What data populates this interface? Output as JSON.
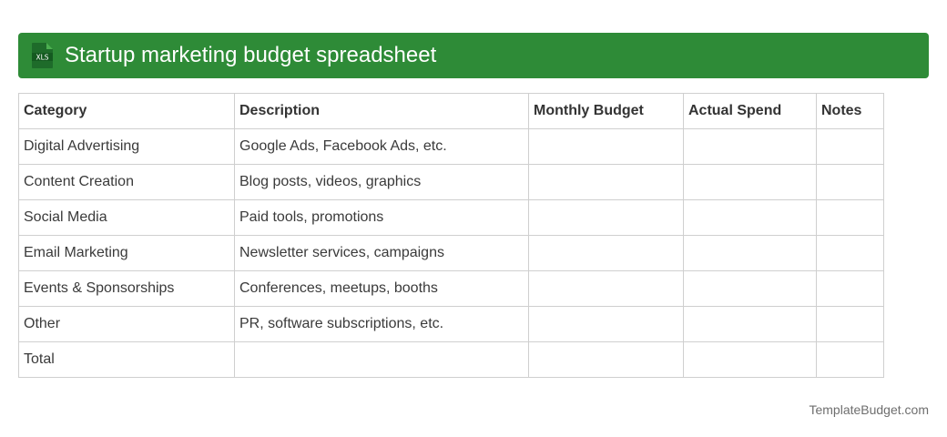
{
  "header": {
    "icon_name": "xls-file-icon",
    "icon_text": "XLS",
    "title": "Startup marketing budget spreadsheet",
    "bar_color": "#2e8b37"
  },
  "table": {
    "columns": [
      "Category",
      "Description",
      "Monthly Budget",
      "Actual Spend",
      "Notes"
    ],
    "rows": [
      [
        "Digital Advertising",
        "Google Ads, Facebook Ads, etc.",
        "",
        "",
        ""
      ],
      [
        "Content Creation",
        "Blog posts, videos, graphics",
        "",
        "",
        ""
      ],
      [
        "Social Media",
        "Paid tools, promotions",
        "",
        "",
        ""
      ],
      [
        "Email Marketing",
        "Newsletter services, campaigns",
        "",
        "",
        ""
      ],
      [
        "Events & Sponsorships",
        "Conferences, meetups, booths",
        "",
        "",
        ""
      ],
      [
        "Other",
        "PR, software subscriptions, etc.",
        "",
        "",
        ""
      ],
      [
        "Total",
        "",
        "",
        "",
        ""
      ]
    ]
  },
  "footer": {
    "brand": "TemplateBudget.com"
  }
}
